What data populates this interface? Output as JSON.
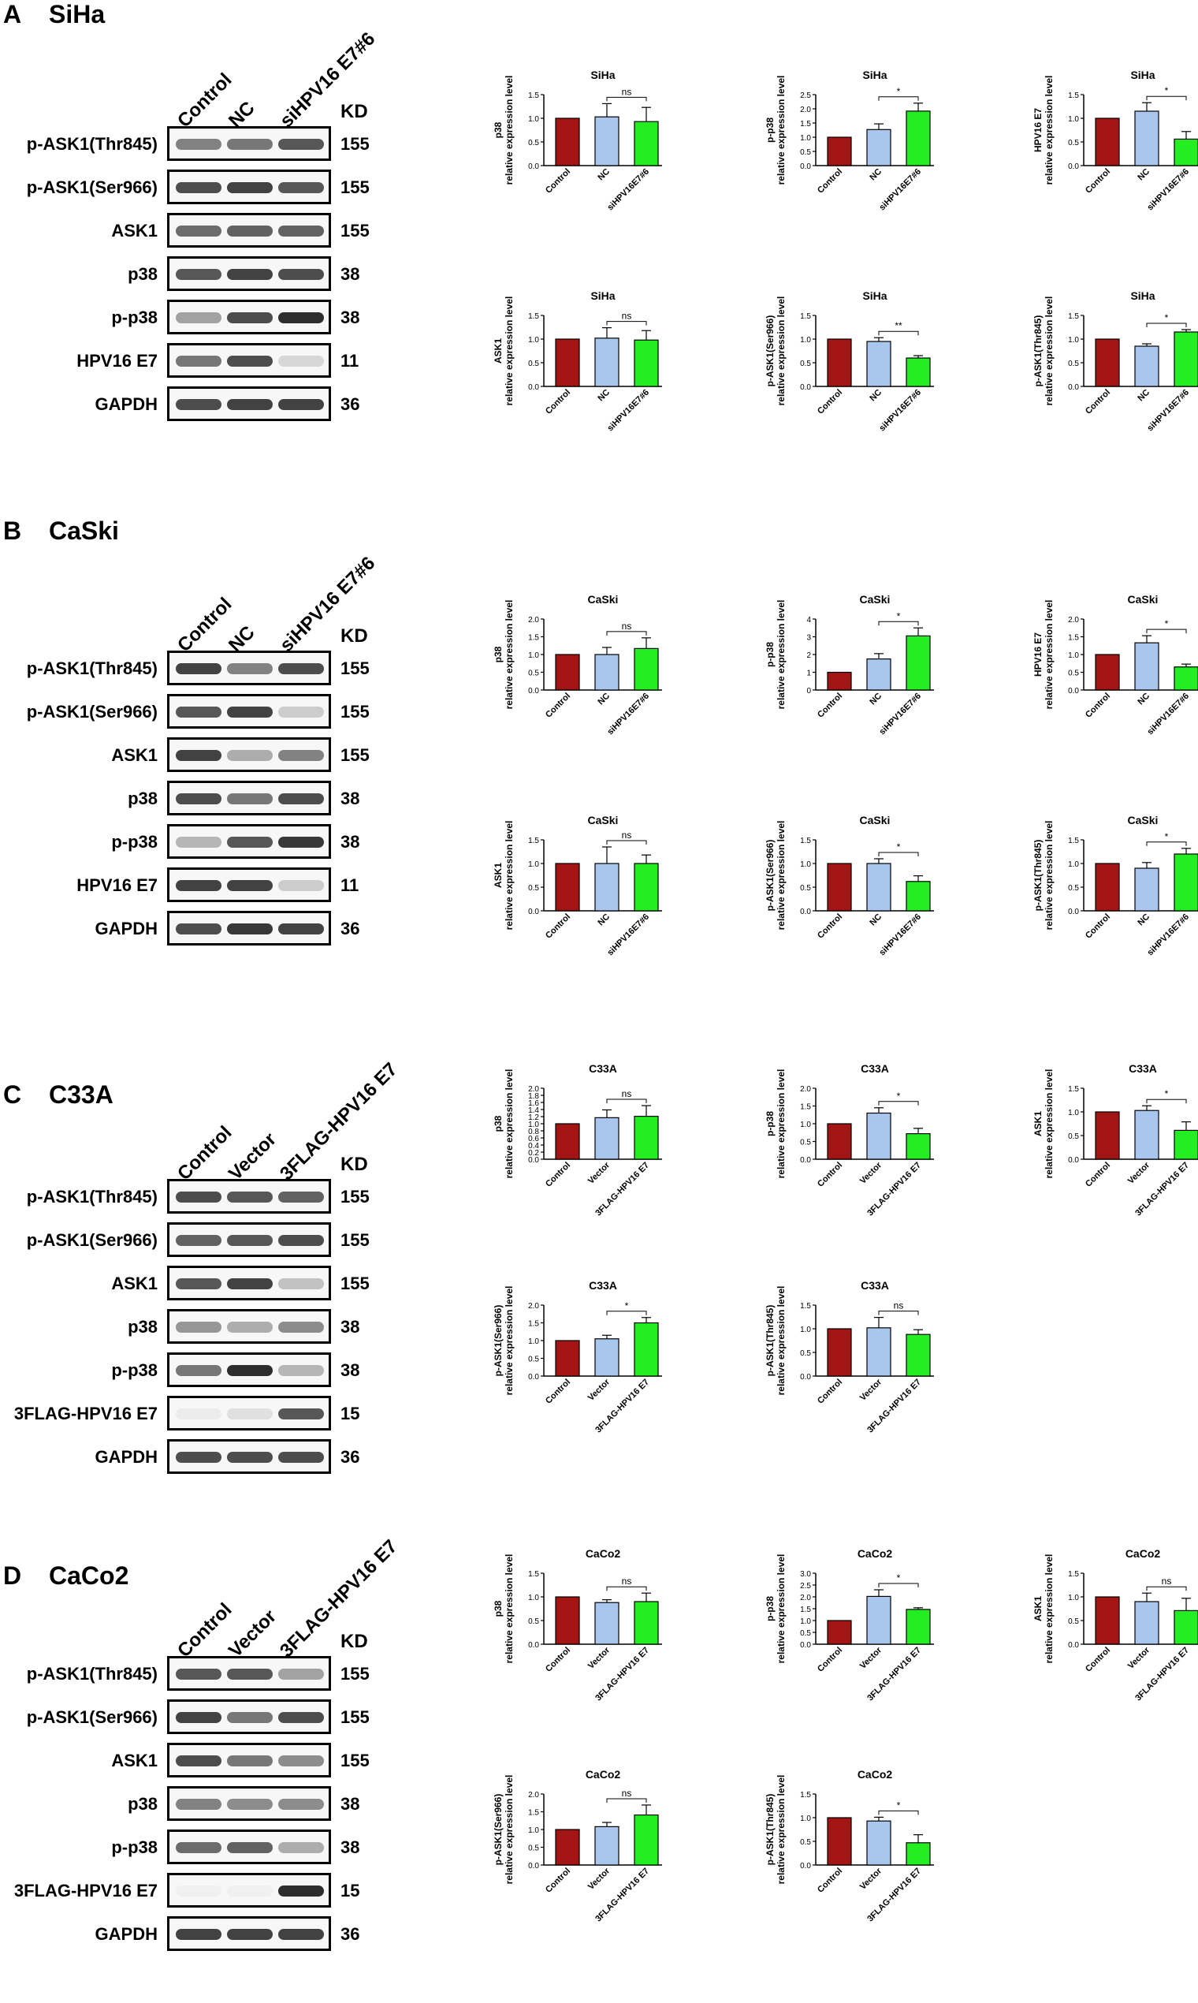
{
  "colors": {
    "control": "#a31515",
    "second": "#a9c6ef",
    "third": "#22ee22"
  },
  "panels": [
    {
      "letter": "A",
      "cell": "SiHa",
      "kd_header": "KD",
      "lanes": [
        "Control",
        "NC",
        "siHPV16 E7#6"
      ],
      "blots": [
        {
          "label": "p-ASK1(Thr845)",
          "kd": "155",
          "intensity": [
            0.55,
            0.6,
            0.75
          ]
        },
        {
          "label": "p-ASK1(Ser966)",
          "kd": "155",
          "intensity": [
            0.8,
            0.85,
            0.75
          ]
        },
        {
          "label": "ASK1",
          "kd": "155",
          "intensity": [
            0.65,
            0.7,
            0.7
          ]
        },
        {
          "label": "p38",
          "kd": "38",
          "intensity": [
            0.75,
            0.85,
            0.8
          ]
        },
        {
          "label": "p-p38",
          "kd": "38",
          "intensity": [
            0.4,
            0.8,
            0.95
          ]
        },
        {
          "label": "HPV16 E7",
          "kd": "11",
          "intensity": [
            0.6,
            0.8,
            0.15
          ]
        },
        {
          "label": "GAPDH",
          "kd": "36",
          "intensity": [
            0.8,
            0.85,
            0.85
          ]
        }
      ]
    },
    {
      "letter": "B",
      "cell": "CaSki",
      "kd_header": "KD",
      "lanes": [
        "Control",
        "NC",
        "siHPV16 E7#6"
      ],
      "blots": [
        {
          "label": "p-ASK1(Thr845)",
          "kd": "155",
          "intensity": [
            0.85,
            0.55,
            0.8
          ]
        },
        {
          "label": "p-ASK1(Ser966)",
          "kd": "155",
          "intensity": [
            0.75,
            0.85,
            0.2
          ]
        },
        {
          "label": "ASK1",
          "kd": "155",
          "intensity": [
            0.85,
            0.35,
            0.55
          ]
        },
        {
          "label": "p38",
          "kd": "38",
          "intensity": [
            0.8,
            0.6,
            0.8
          ]
        },
        {
          "label": "p-p38",
          "kd": "38",
          "intensity": [
            0.3,
            0.75,
            0.9
          ]
        },
        {
          "label": "HPV16 E7",
          "kd": "11",
          "intensity": [
            0.85,
            0.85,
            0.2
          ]
        },
        {
          "label": "GAPDH",
          "kd": "36",
          "intensity": [
            0.8,
            0.9,
            0.85
          ]
        }
      ]
    },
    {
      "letter": "C",
      "cell": "C33A",
      "kd_header": "KD",
      "lanes": [
        "Control",
        "Vector",
        "3FLAG-HPV16 E7"
      ],
      "blots": [
        {
          "label": "p-ASK1(Thr845)",
          "kd": "155",
          "intensity": [
            0.8,
            0.75,
            0.7
          ]
        },
        {
          "label": "p-ASK1(Ser966)",
          "kd": "155",
          "intensity": [
            0.7,
            0.75,
            0.8
          ]
        },
        {
          "label": "ASK1",
          "kd": "155",
          "intensity": [
            0.75,
            0.85,
            0.25
          ]
        },
        {
          "label": "p38",
          "kd": "38",
          "intensity": [
            0.45,
            0.35,
            0.5
          ]
        },
        {
          "label": "p-p38",
          "kd": "38",
          "intensity": [
            0.6,
            0.95,
            0.3
          ]
        },
        {
          "label": "3FLAG-HPV16 E7",
          "kd": "15",
          "intensity": [
            0.05,
            0.1,
            0.75
          ]
        },
        {
          "label": "GAPDH",
          "kd": "36",
          "intensity": [
            0.8,
            0.8,
            0.8
          ]
        }
      ]
    },
    {
      "letter": "D",
      "cell": "CaCo2",
      "kd_header": "KD",
      "lanes": [
        "Control",
        "Vector",
        "3FLAG-HPV16 E7"
      ],
      "blots": [
        {
          "label": "p-ASK1(Thr845)",
          "kd": "155",
          "intensity": [
            0.75,
            0.75,
            0.4
          ]
        },
        {
          "label": "p-ASK1(Ser966)",
          "kd": "155",
          "intensity": [
            0.85,
            0.6,
            0.8
          ]
        },
        {
          "label": "ASK1",
          "kd": "155",
          "intensity": [
            0.8,
            0.6,
            0.5
          ]
        },
        {
          "label": "p38",
          "kd": "38",
          "intensity": [
            0.55,
            0.5,
            0.5
          ]
        },
        {
          "label": "p-p38",
          "kd": "38",
          "intensity": [
            0.65,
            0.7,
            0.35
          ]
        },
        {
          "label": "3FLAG-HPV16 E7",
          "kd": "15",
          "intensity": [
            0.0,
            0.0,
            0.95
          ]
        },
        {
          "label": "GAPDH",
          "kd": "36",
          "intensity": [
            0.85,
            0.85,
            0.85
          ]
        }
      ]
    }
  ],
  "y_axis_sub": "relative expression level",
  "chart_data": [
    {
      "panel": "A",
      "type": "bar",
      "title": "SiHa",
      "ylabel": "p38",
      "categories": [
        "Control",
        "NC",
        "siHPV16E7#6"
      ],
      "values": [
        1.0,
        1.03,
        0.93
      ],
      "errors": [
        0,
        0.28,
        0.3
      ],
      "ylim": [
        0,
        1.5
      ],
      "ticks": [
        "0.0",
        "0.5",
        "1.0",
        "1.5"
      ],
      "sig": "ns"
    },
    {
      "panel": "A",
      "type": "bar",
      "title": "SiHa",
      "ylabel": "p-p38",
      "categories": [
        "Control",
        "NC",
        "siHPV16E7#6"
      ],
      "values": [
        1.0,
        1.27,
        1.92
      ],
      "errors": [
        0,
        0.2,
        0.28
      ],
      "ylim": [
        0,
        2.5
      ],
      "ticks": [
        "0.0",
        "0.5",
        "1.0",
        "1.5",
        "2.0",
        "2.5"
      ],
      "sig": "*"
    },
    {
      "panel": "A",
      "type": "bar",
      "title": "SiHa",
      "ylabel": "HPV16 E7",
      "categories": [
        "Control",
        "NC",
        "siHPV16E7#6"
      ],
      "values": [
        1.0,
        1.15,
        0.56
      ],
      "errors": [
        0,
        0.18,
        0.16
      ],
      "ylim": [
        0,
        1.5
      ],
      "ticks": [
        "0.0",
        "0.5",
        "1.0",
        "1.5"
      ],
      "sig": "*"
    },
    {
      "panel": "A",
      "type": "bar",
      "title": "SiHa",
      "ylabel": "ASK1",
      "categories": [
        "Control",
        "NC",
        "siHPV16E7#6"
      ],
      "values": [
        1.0,
        1.02,
        0.98
      ],
      "errors": [
        0,
        0.22,
        0.2
      ],
      "ylim": [
        0,
        1.5
      ],
      "ticks": [
        "0.0",
        "0.5",
        "1.0",
        "1.5"
      ],
      "sig": "ns"
    },
    {
      "panel": "A",
      "type": "bar",
      "title": "SiHa",
      "ylabel": "p-ASK1(Ser966)",
      "categories": [
        "Control",
        "NC",
        "siHPV16E7#6"
      ],
      "values": [
        1.0,
        0.95,
        0.6
      ],
      "errors": [
        0,
        0.08,
        0.05
      ],
      "ylim": [
        0,
        1.5
      ],
      "ticks": [
        "0.0",
        "0.5",
        "1.0",
        "1.5"
      ],
      "sig": "**"
    },
    {
      "panel": "A",
      "type": "bar",
      "title": "SiHa",
      "ylabel": "p-ASK1(Thr845)",
      "categories": [
        "Control",
        "NC",
        "siHPV16E7#6"
      ],
      "values": [
        1.0,
        0.85,
        1.15
      ],
      "errors": [
        0,
        0.05,
        0.05
      ],
      "ylim": [
        0,
        1.5
      ],
      "ticks": [
        "0.0",
        "0.5",
        "1.0",
        "1.5"
      ],
      "sig": "*"
    },
    {
      "panel": "B",
      "type": "bar",
      "title": "CaSki",
      "ylabel": "p38",
      "categories": [
        "Control",
        "NC",
        "siHPV16E7#6"
      ],
      "values": [
        1.0,
        1.0,
        1.17
      ],
      "errors": [
        0,
        0.2,
        0.3
      ],
      "ylim": [
        0,
        2.0
      ],
      "ticks": [
        "0.0",
        "0.5",
        "1.0",
        "1.5",
        "2.0"
      ],
      "sig": "ns"
    },
    {
      "panel": "B",
      "type": "bar",
      "title": "CaSki",
      "ylabel": "p-p38",
      "categories": [
        "Control",
        "NC",
        "siHPV16E7#6"
      ],
      "values": [
        1.0,
        1.75,
        3.05
      ],
      "errors": [
        0,
        0.3,
        0.45
      ],
      "ylim": [
        0,
        4
      ],
      "ticks": [
        "0",
        "1",
        "2",
        "3",
        "4"
      ],
      "sig": "*"
    },
    {
      "panel": "B",
      "type": "bar",
      "title": "CaSki",
      "ylabel": "HPV16 E7",
      "categories": [
        "Control",
        "NC",
        "siHPV16E7#6"
      ],
      "values": [
        1.0,
        1.33,
        0.65
      ],
      "errors": [
        0,
        0.2,
        0.08
      ],
      "ylim": [
        0,
        2.0
      ],
      "ticks": [
        "0.0",
        "0.5",
        "1.0",
        "1.5",
        "2.0"
      ],
      "sig": "*"
    },
    {
      "panel": "B",
      "type": "bar",
      "title": "CaSki",
      "ylabel": "ASK1",
      "categories": [
        "Control",
        "NC",
        "siHPV16E7#6"
      ],
      "values": [
        1.0,
        1.0,
        1.0
      ],
      "errors": [
        0,
        0.35,
        0.18
      ],
      "ylim": [
        0,
        1.5
      ],
      "ticks": [
        "0.0",
        "0.5",
        "1.0",
        "1.5"
      ],
      "sig": "ns"
    },
    {
      "panel": "B",
      "type": "bar",
      "title": "CaSki",
      "ylabel": "p-ASK1(Ser966)",
      "categories": [
        "Control",
        "NC",
        "siHPV16E7#6"
      ],
      "values": [
        1.0,
        1.0,
        0.62
      ],
      "errors": [
        0,
        0.1,
        0.12
      ],
      "ylim": [
        0,
        1.5
      ],
      "ticks": [
        "0.0",
        "0.5",
        "1.0",
        "1.5"
      ],
      "sig": "*"
    },
    {
      "panel": "B",
      "type": "bar",
      "title": "CaSki",
      "ylabel": "p-ASK1(Thr845)",
      "categories": [
        "Control",
        "NC",
        "siHPV16E7#6"
      ],
      "values": [
        1.0,
        0.9,
        1.2
      ],
      "errors": [
        0,
        0.12,
        0.12
      ],
      "ylim": [
        0,
        1.5
      ],
      "ticks": [
        "0.0",
        "0.5",
        "1.0",
        "1.5"
      ],
      "sig": "*"
    },
    {
      "panel": "C",
      "type": "bar",
      "title": "C33A",
      "ylabel": "p38",
      "categories": [
        "Control",
        "Vector",
        "3FLAG-HPV16 E7"
      ],
      "values": [
        1.0,
        1.17,
        1.21
      ],
      "errors": [
        0,
        0.22,
        0.3
      ],
      "ylim": [
        0,
        2.0
      ],
      "ticks": [
        "0.0",
        "0.2",
        "0.4",
        "0.6",
        "0.8",
        "1.0",
        "1.2",
        "1.4",
        "1.6",
        "1.8",
        "2.0"
      ],
      "sig": "ns"
    },
    {
      "panel": "C",
      "type": "bar",
      "title": "C33A",
      "ylabel": "p-p38",
      "categories": [
        "Control",
        "Vector",
        "3FLAG-HPV16 E7"
      ],
      "values": [
        1.0,
        1.3,
        0.72
      ],
      "errors": [
        0,
        0.15,
        0.15
      ],
      "ylim": [
        0,
        2.0
      ],
      "ticks": [
        "0.0",
        "0.5",
        "1.0",
        "1.5",
        "2.0"
      ],
      "sig": "*"
    },
    {
      "panel": "C",
      "type": "bar",
      "title": "C33A",
      "ylabel": "ASK1",
      "categories": [
        "Control",
        "Vector",
        "3FLAG-HPV16 E7"
      ],
      "values": [
        1.0,
        1.03,
        0.61
      ],
      "errors": [
        0,
        0.1,
        0.18
      ],
      "ylim": [
        0,
        1.5
      ],
      "ticks": [
        "0.0",
        "0.5",
        "1.0",
        "1.5"
      ],
      "sig": "*"
    },
    {
      "panel": "C",
      "type": "bar",
      "title": "C33A",
      "ylabel": "p-ASK1(Ser966)",
      "categories": [
        "Control",
        "Vector",
        "3FLAG-HPV16 E7"
      ],
      "values": [
        1.0,
        1.05,
        1.5
      ],
      "errors": [
        0,
        0.1,
        0.15
      ],
      "ylim": [
        0,
        2.0
      ],
      "ticks": [
        "0.0",
        "0.5",
        "1.0",
        "1.5",
        "2.0"
      ],
      "sig": "*"
    },
    {
      "panel": "C",
      "type": "bar",
      "title": "C33A",
      "ylabel": "p-ASK1(Thr845)",
      "categories": [
        "Control",
        "Vector",
        "3FLAG-HPV16 E7"
      ],
      "values": [
        1.0,
        1.02,
        0.88
      ],
      "errors": [
        0,
        0.22,
        0.1
      ],
      "ylim": [
        0,
        1.5
      ],
      "ticks": [
        "0.0",
        "0.5",
        "1.0",
        "1.5"
      ],
      "sig": "ns"
    },
    {
      "panel": "D",
      "type": "bar",
      "title": "CaCo2",
      "ylabel": "p38",
      "categories": [
        "Control",
        "Vector",
        "3FLAG-HPV16 E7"
      ],
      "values": [
        1.0,
        0.88,
        0.9
      ],
      "errors": [
        0,
        0.06,
        0.18
      ],
      "ylim": [
        0,
        1.5
      ],
      "ticks": [
        "0.0",
        "0.5",
        "1.0",
        "1.5"
      ],
      "sig": "ns"
    },
    {
      "panel": "D",
      "type": "bar",
      "title": "CaCo2",
      "ylabel": "p-p38",
      "categories": [
        "Control",
        "Vector",
        "3FLAG-HPV16 E7"
      ],
      "values": [
        1.0,
        2.02,
        1.47
      ],
      "errors": [
        0,
        0.28,
        0.07
      ],
      "ylim": [
        0,
        3.0
      ],
      "ticks": [
        "0.0",
        "0.5",
        "1.0",
        "1.5",
        "2.0",
        "2.5",
        "3.0"
      ],
      "sig": "*"
    },
    {
      "panel": "D",
      "type": "bar",
      "title": "CaCo2",
      "ylabel": "ASK1",
      "categories": [
        "Control",
        "Vector",
        "3FLAG-HPV16 E7"
      ],
      "values": [
        1.0,
        0.9,
        0.71
      ],
      "errors": [
        0,
        0.18,
        0.26
      ],
      "ylim": [
        0,
        1.5
      ],
      "ticks": [
        "0.0",
        "0.5",
        "1.0",
        "1.5"
      ],
      "sig": "ns"
    },
    {
      "panel": "D",
      "type": "bar",
      "title": "CaCo2",
      "ylabel": "p-ASK1(Ser966)",
      "categories": [
        "Control",
        "Vector",
        "3FLAG-HPV16 E7"
      ],
      "values": [
        1.0,
        1.08,
        1.41
      ],
      "errors": [
        0,
        0.12,
        0.28
      ],
      "ylim": [
        0,
        2.0
      ],
      "ticks": [
        "0.0",
        "0.5",
        "1.0",
        "1.5",
        "2.0"
      ],
      "sig": "ns"
    },
    {
      "panel": "D",
      "type": "bar",
      "title": "CaCo2",
      "ylabel": "p-ASK1(Thr845)",
      "categories": [
        "Control",
        "Vector",
        "3FLAG-HPV16 E7"
      ],
      "values": [
        1.0,
        0.93,
        0.47
      ],
      "errors": [
        0,
        0.08,
        0.17
      ],
      "ylim": [
        0,
        1.5
      ],
      "ticks": [
        "0.0",
        "0.5",
        "1.0",
        "1.5"
      ],
      "sig": "*"
    }
  ]
}
